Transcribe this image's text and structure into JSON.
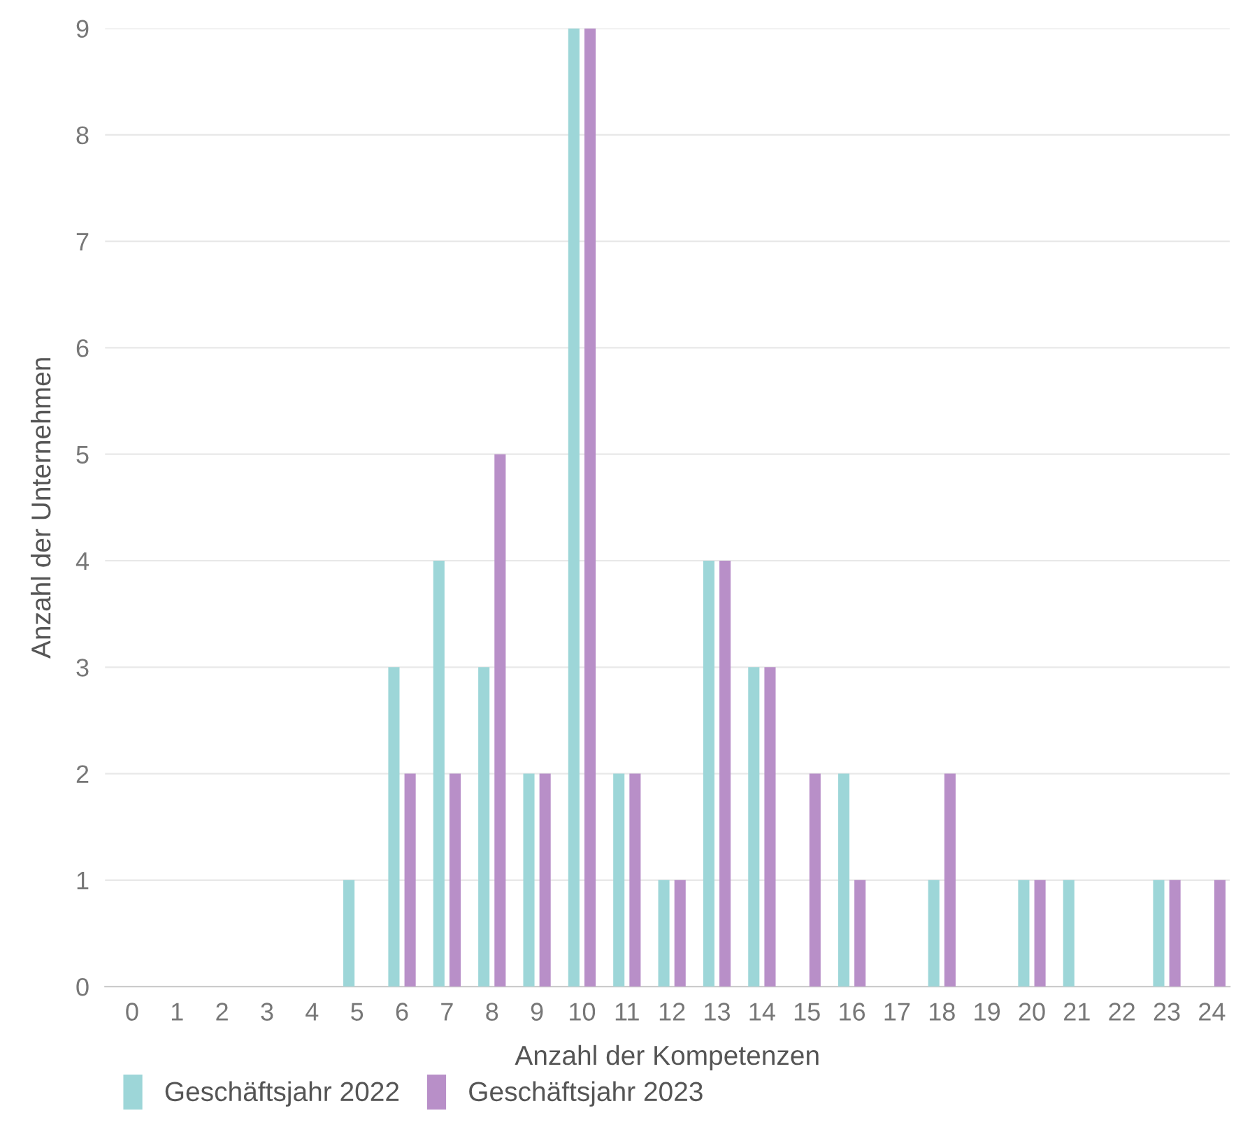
{
  "chart_data": {
    "type": "bar",
    "xlabel": "Anzahl der Kompetenzen",
    "ylabel": "Anzahl der Unternehmen",
    "categories": [
      "0",
      "1",
      "2",
      "3",
      "4",
      "5",
      "6",
      "7",
      "8",
      "9",
      "10",
      "11",
      "12",
      "13",
      "14",
      "15",
      "16",
      "17",
      "18",
      "19",
      "20",
      "21",
      "22",
      "23",
      "24"
    ],
    "series": [
      {
        "name": "Geschäftsjahr 2022",
        "color": "#9dd6d8",
        "values": [
          0,
          0,
          0,
          0,
          0,
          1,
          3,
          4,
          3,
          2,
          9,
          2,
          1,
          4,
          3,
          0,
          2,
          0,
          1,
          0,
          1,
          1,
          0,
          1,
          0
        ]
      },
      {
        "name": "Geschäftsjahr 2023",
        "color": "#b88fc8",
        "values": [
          0,
          0,
          0,
          0,
          0,
          0,
          2,
          2,
          5,
          2,
          9,
          2,
          1,
          4,
          3,
          2,
          1,
          0,
          2,
          0,
          1,
          0,
          0,
          1,
          1
        ]
      }
    ],
    "ylim": [
      0,
      9
    ],
    "yticks": [
      0,
      1,
      2,
      3,
      4,
      5,
      6,
      7,
      8,
      9
    ],
    "grid": "y",
    "legend": "bottom left"
  }
}
